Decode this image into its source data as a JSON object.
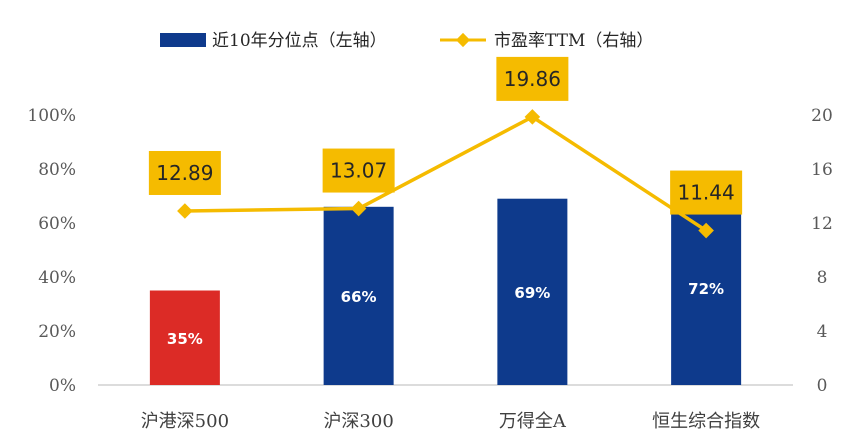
{
  "chart_data": {
    "type": "bar",
    "categories": [
      "沪港深500",
      "沪深300",
      "万得全A",
      "恒生综合指数"
    ],
    "series": [
      {
        "name": "近10年分位点（左轴）",
        "type": "bar",
        "axis": "left",
        "values": [
          35,
          66,
          69,
          72
        ],
        "labels": [
          "35%",
          "66%",
          "69%",
          "72%"
        ],
        "colors": [
          "#dc2b26",
          "#0e3a8c",
          "#0e3a8c",
          "#0e3a8c"
        ]
      },
      {
        "name": "市盈率TTM（右轴）",
        "type": "line",
        "axis": "right",
        "values": [
          12.89,
          13.07,
          19.86,
          11.44
        ],
        "labels": [
          "12.89",
          "13.07",
          "19.86",
          "11.44"
        ],
        "color": "#f5bb00",
        "label_box_color": "#f5bb00"
      }
    ],
    "y_left": {
      "min": 0,
      "max": 100,
      "ticks": [
        "0%",
        "20%",
        "40%",
        "60%",
        "80%",
        "100%"
      ]
    },
    "y_right": {
      "min": 0,
      "max": 20,
      "ticks": [
        "0",
        "4",
        "8",
        "12",
        "16",
        "20"
      ]
    },
    "grid": false,
    "legend": "top-center"
  }
}
